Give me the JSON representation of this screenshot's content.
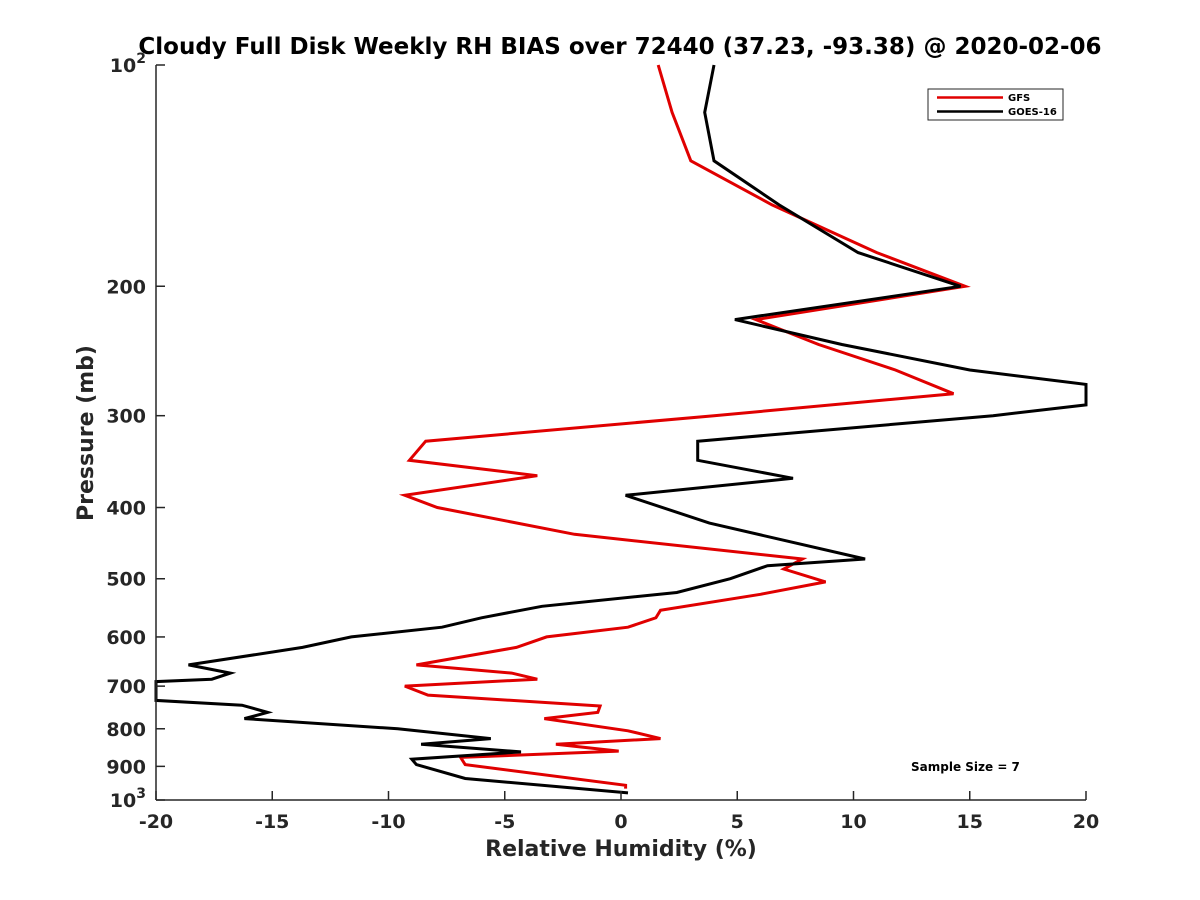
{
  "chart_data": {
    "type": "line",
    "title": "Cloudy Full Disk Weekly RH BIAS over 72440 (37.23, -93.38) @ 2020-02-06",
    "xlabel": "Relative Humidity (%)",
    "ylabel": "Pressure (mb)",
    "xlim": [
      -20,
      20
    ],
    "ylim": [
      100,
      1000
    ],
    "y_scale": "log",
    "y_reversed": true,
    "x_ticks": [
      "-20",
      "-15",
      "-10",
      "-5",
      "0",
      "5",
      "10",
      "15",
      "20"
    ],
    "y_ticks": [
      {
        "base": "10",
        "exp": "2"
      },
      {
        "base": "200",
        "exp": ""
      },
      {
        "base": "300",
        "exp": ""
      },
      {
        "base": "400",
        "exp": ""
      },
      {
        "base": "500",
        "exp": ""
      },
      {
        "base": "600",
        "exp": ""
      },
      {
        "base": "700",
        "exp": ""
      },
      {
        "base": "800",
        "exp": ""
      },
      {
        "base": "900",
        "exp": ""
      },
      {
        "base": "10",
        "exp": "3"
      }
    ],
    "grid": false,
    "legend_position": "top-right",
    "annotation": "Sample Size = 7",
    "series": [
      {
        "name": "GFS",
        "color": "#e00000",
        "points": [
          [
            1.6,
            100
          ],
          [
            2.2,
            116
          ],
          [
            3.0,
            135
          ],
          [
            6.5,
            155
          ],
          [
            11,
            180
          ],
          [
            14.8,
            200
          ],
          [
            5.8,
            222
          ],
          [
            8.5,
            240
          ],
          [
            11.8,
            260
          ],
          [
            14.3,
            280
          ],
          [
            4.0,
            300
          ],
          [
            -8.4,
            325
          ],
          [
            -9.1,
            345
          ],
          [
            -3.6,
            362
          ],
          [
            -9.3,
            385
          ],
          [
            -7.9,
            400
          ],
          [
            -2.0,
            435
          ],
          [
            7.8,
            470
          ],
          [
            7.0,
            485
          ],
          [
            8.8,
            505
          ],
          [
            6.0,
            525
          ],
          [
            1.7,
            552
          ],
          [
            1.5,
            565
          ],
          [
            0.3,
            582
          ],
          [
            -3.2,
            600
          ],
          [
            -4.5,
            620
          ],
          [
            -8.8,
            655
          ],
          [
            -4.7,
            672
          ],
          [
            -3.6,
            685
          ],
          [
            -9.3,
            700
          ],
          [
            -8.3,
            720
          ],
          [
            -0.9,
            745
          ],
          [
            -1.0,
            760
          ],
          [
            -3.3,
            775
          ],
          [
            0.3,
            805
          ],
          [
            1.7,
            825
          ],
          [
            -2.8,
            840
          ],
          [
            -0.1,
            858
          ],
          [
            -6.9,
            875
          ],
          [
            -6.7,
            895
          ],
          [
            0.2,
            955
          ],
          [
            0.2,
            965
          ]
        ]
      },
      {
        "name": "GOES-16",
        "color": "#000000",
        "points": [
          [
            4.0,
            100
          ],
          [
            3.6,
            116
          ],
          [
            4.0,
            135
          ],
          [
            6.8,
            155
          ],
          [
            10.2,
            180
          ],
          [
            14.6,
            200
          ],
          [
            4.9,
            222
          ],
          [
            9.5,
            240
          ],
          [
            15.0,
            260
          ],
          [
            20.0,
            272
          ],
          [
            20.0,
            290
          ],
          [
            16.0,
            300
          ],
          [
            3.3,
            325
          ],
          [
            3.3,
            345
          ],
          [
            7.4,
            365
          ],
          [
            0.2,
            385
          ],
          [
            3.8,
            420
          ],
          [
            10.5,
            470
          ],
          [
            6.3,
            480
          ],
          [
            4.7,
            500
          ],
          [
            2.4,
            522
          ],
          [
            -3.4,
            545
          ],
          [
            -6.0,
            565
          ],
          [
            -7.7,
            582
          ],
          [
            -11.6,
            600
          ],
          [
            -13.7,
            620
          ],
          [
            -18.6,
            655
          ],
          [
            -16.8,
            672
          ],
          [
            -17.6,
            685
          ],
          [
            -20.0,
            690
          ],
          [
            -20.0,
            732
          ],
          [
            -16.3,
            743
          ],
          [
            -15.2,
            760
          ],
          [
            -16.2,
            775
          ],
          [
            -9.6,
            800
          ],
          [
            -5.6,
            825
          ],
          [
            -8.6,
            840
          ],
          [
            -4.3,
            860
          ],
          [
            -9.0,
            880
          ],
          [
            -8.8,
            895
          ],
          [
            -6.7,
            935
          ],
          [
            0.3,
            978
          ]
        ]
      }
    ]
  }
}
